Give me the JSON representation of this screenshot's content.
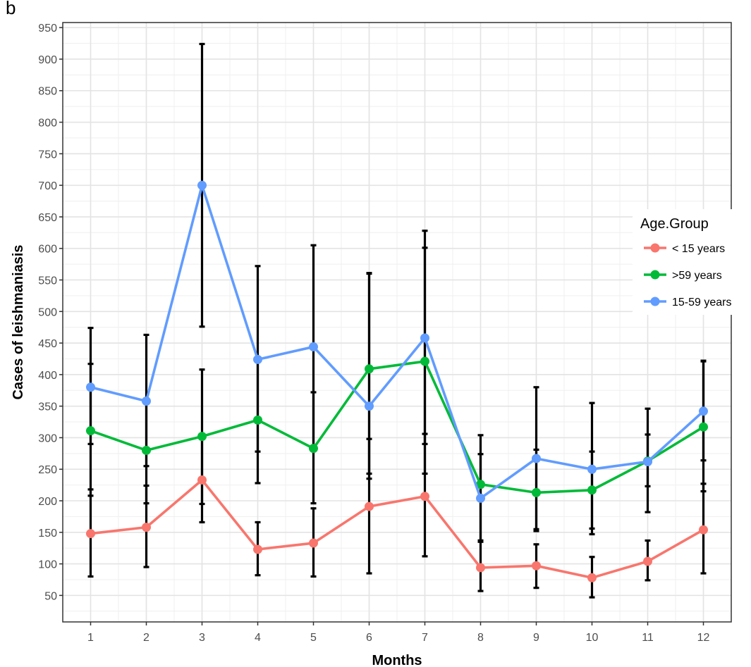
{
  "panel_label": "b",
  "chart_data": {
    "type": "line",
    "title": "",
    "xlabel": "Months",
    "ylabel": "Cases of leishmaniasis",
    "x": [
      1,
      2,
      3,
      4,
      5,
      6,
      7,
      8,
      9,
      10,
      11,
      12
    ],
    "xlim": [
      0.5,
      12.5
    ],
    "ylim": [
      8,
      958
    ],
    "y_ticks": [
      50,
      100,
      150,
      200,
      250,
      300,
      350,
      400,
      450,
      500,
      550,
      600,
      650,
      700,
      750,
      800,
      850,
      900,
      950
    ],
    "grid": true,
    "legend": {
      "title": "Age.Group",
      "placement": "right"
    },
    "series": [
      {
        "name": "< 15 years",
        "color": "#F8766D",
        "values": [
          148,
          158,
          233,
          123,
          133,
          191,
          207,
          94,
          97,
          78,
          104,
          154
        ],
        "error_low": [
          80,
          95,
          166,
          82,
          80,
          85,
          112,
          57,
          62,
          47,
          74,
          85
        ],
        "error_high": [
          218,
          224,
          300,
          166,
          188,
          298,
          306,
          137,
          131,
          111,
          137,
          227
        ]
      },
      {
        "name": ">59 years",
        "color": "#00BA38",
        "values": [
          311,
          280,
          302,
          328,
          283,
          409,
          421,
          226,
          213,
          217,
          263,
          317
        ],
        "error_low": [
          208,
          196,
          195,
          228,
          196,
          235,
          243,
          137,
          152,
          147,
          182,
          215
        ],
        "error_high": [
          417,
          362,
          408,
          427,
          372,
          561,
          601,
          304,
          281,
          278,
          346,
          421
        ]
      },
      {
        "name": "15-59 years",
        "color": "#619CFF",
        "values": [
          380,
          358,
          700,
          424,
          444,
          350,
          458,
          204,
          267,
          250,
          262,
          342
        ],
        "error_low": [
          290,
          255,
          476,
          278,
          280,
          243,
          290,
          135,
          155,
          156,
          223,
          264
        ],
        "error_high": [
          474,
          463,
          924,
          572,
          605,
          560,
          628,
          274,
          380,
          355,
          305,
          422
        ]
      }
    ]
  }
}
